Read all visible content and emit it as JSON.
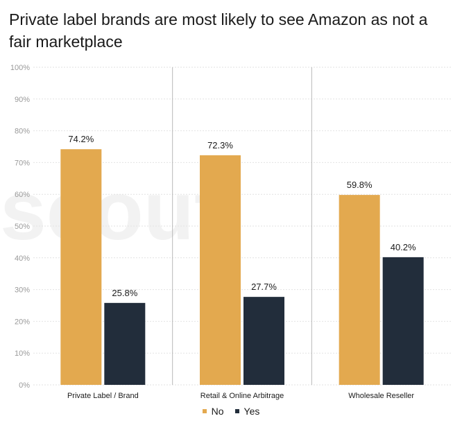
{
  "title": "Private label brands are most likely to see Amazon as not a fair marketplace",
  "watermark": "scout",
  "colors": {
    "No": "#e3a94f",
    "Yes": "#222d3b",
    "grid": "#e2e2e2",
    "divider": "#b8b8b8"
  },
  "chart_data": {
    "type": "bar",
    "categories": [
      "Private Label / Brand",
      "Retail & Online Arbitrage",
      "Wholesale Reseller"
    ],
    "series": [
      {
        "name": "No",
        "values": [
          74.2,
          72.3,
          59.8
        ],
        "labels": [
          "74.2%",
          "72.3%",
          "59.8%"
        ]
      },
      {
        "name": "Yes",
        "values": [
          25.8,
          27.7,
          40.2
        ],
        "labels": [
          "25.8%",
          "27.7%",
          "40.2%"
        ]
      }
    ],
    "yticks": [
      "0%",
      "10%",
      "20%",
      "30%",
      "40%",
      "50%",
      "60%",
      "70%",
      "80%",
      "90%",
      "100%"
    ],
    "ylim": [
      0,
      100
    ],
    "grid": true,
    "legend_position": "bottom-center"
  }
}
